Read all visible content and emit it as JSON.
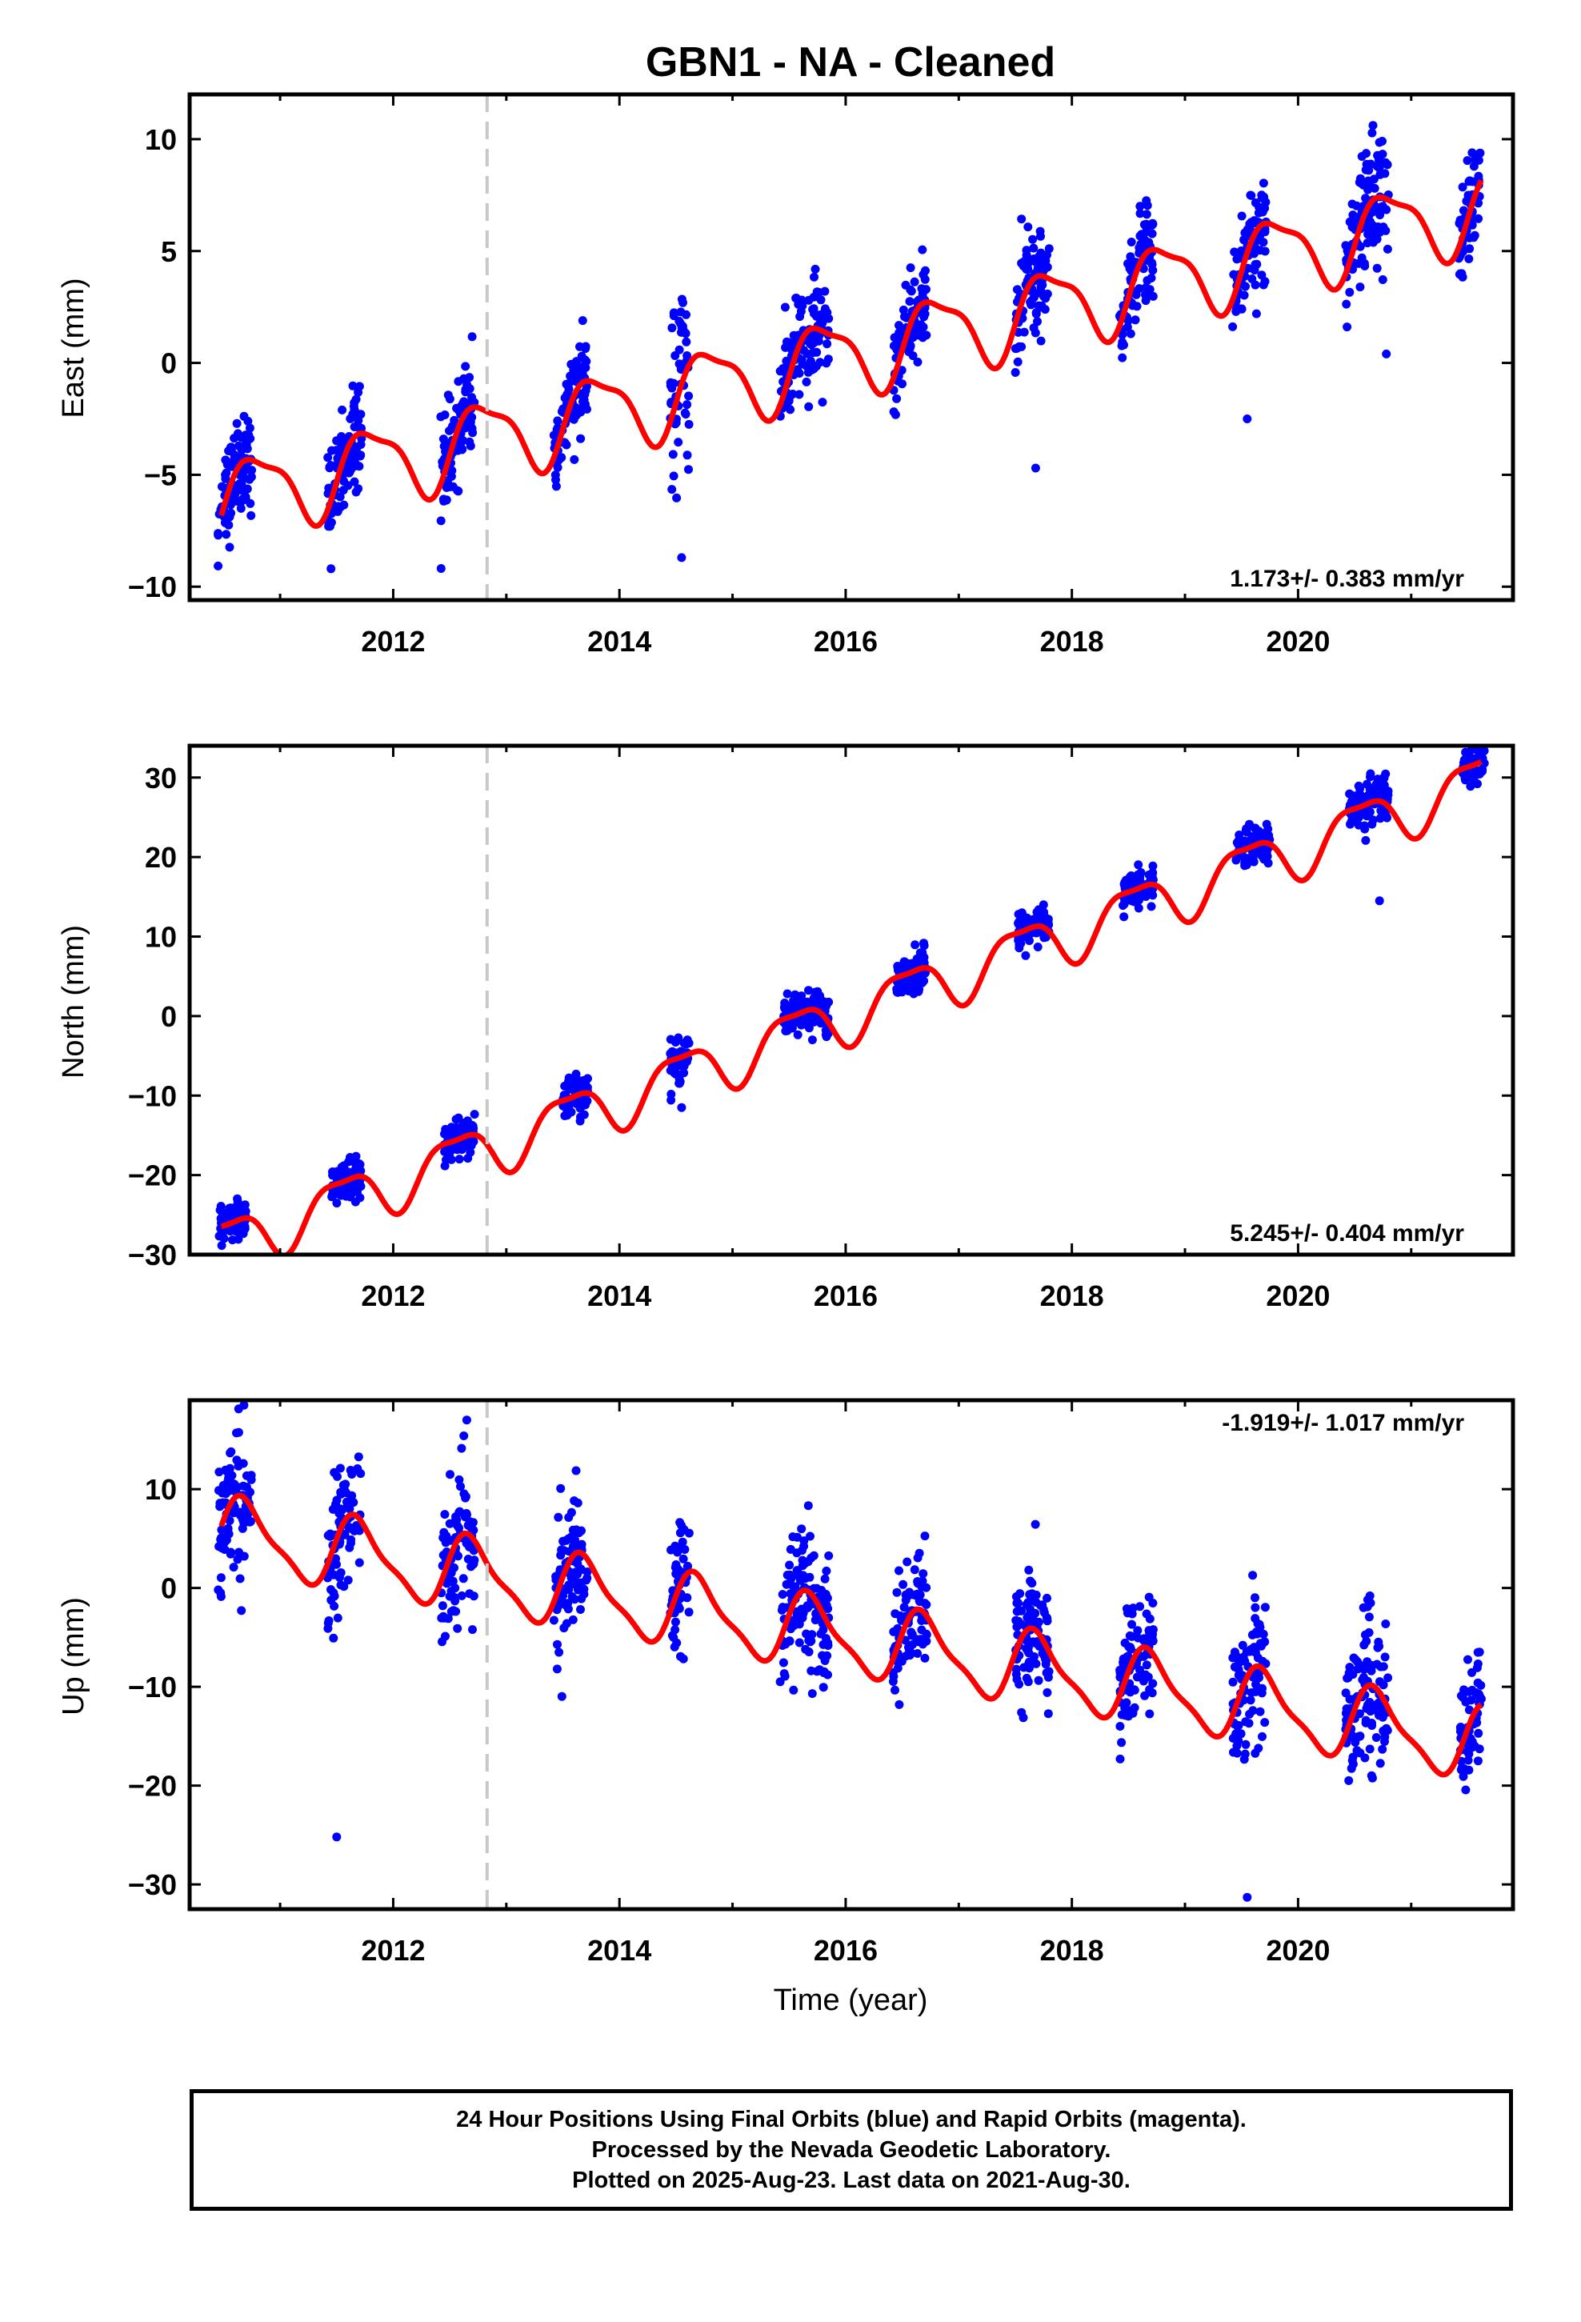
{
  "title": "GBN1  - NA - Cleaned",
  "x_axis_label": "Time (year)",
  "footer_lines": [
    "24 Hour Positions Using Final Orbits (blue) and Rapid Orbits (magenta).",
    "Processed by the Nevada Geodetic Laboratory.",
    "Plotted on 2025-Aug-23. Last data on 2021-Aug-30."
  ],
  "colors": {
    "data": "#0000ff",
    "model": "#ff0000",
    "marker_line": "#c8c8c8",
    "frame": "#000000"
  },
  "chart_data": [
    {
      "type": "scatter",
      "ylabel": "East (mm)",
      "xlim": [
        2010.2,
        2021.9
      ],
      "ylim": [
        -10.6,
        12
      ],
      "x_ticks": [
        2012,
        2014,
        2016,
        2018,
        2020
      ],
      "y_ticks": [
        -10,
        -5,
        0,
        5,
        10
      ],
      "rate_label": "1.173+/- 0.383 mm/yr",
      "rate_position": "bottom-right",
      "vertical_marker": 2012.83,
      "trend": {
        "y_at_2010_5": -6.1,
        "slope": 1.173,
        "annual_amplitude": 1.7,
        "annual_phase_peak": 2010.8,
        "semiannual_amplitude": 0.5,
        "semiannual_phase_peak": 2010.6
      },
      "clusters": [
        {
          "start": 2010.45,
          "end": 2010.75,
          "spread": 1.1
        },
        {
          "start": 2011.42,
          "end": 2011.72,
          "spread": 1.1
        },
        {
          "start": 2012.42,
          "end": 2012.72,
          "spread": 1.1
        },
        {
          "start": 2013.42,
          "end": 2013.72,
          "spread": 1.0
        },
        {
          "start": 2014.45,
          "end": 2014.62,
          "spread": 1.8
        },
        {
          "start": 2015.42,
          "end": 2015.85,
          "spread": 1.2
        },
        {
          "start": 2016.42,
          "end": 2016.72,
          "spread": 1.0
        },
        {
          "start": 2017.5,
          "end": 2017.8,
          "spread": 1.2
        },
        {
          "start": 2018.42,
          "end": 2018.72,
          "spread": 1.0
        },
        {
          "start": 2019.42,
          "end": 2019.72,
          "spread": 1.3
        },
        {
          "start": 2020.42,
          "end": 2020.8,
          "spread": 1.4
        },
        {
          "start": 2021.42,
          "end": 2021.62,
          "spread": 1.2
        }
      ],
      "outliers": [
        [
          2017.68,
          -4.7
        ],
        [
          2019.55,
          -2.5
        ],
        [
          2020.78,
          0.4
        ],
        [
          2014.55,
          -8.7
        ],
        [
          2011.45,
          -9.2
        ]
      ]
    },
    {
      "type": "scatter",
      "ylabel": "North (mm)",
      "xlim": [
        2010.2,
        2021.9
      ],
      "ylim": [
        -30,
        34
      ],
      "x_ticks": [
        2012,
        2014,
        2016,
        2018,
        2020
      ],
      "y_ticks": [
        -30,
        -20,
        -10,
        0,
        10,
        20,
        30
      ],
      "rate_label": "5.245+/- 0.404 mm/yr",
      "rate_position": "bottom-right",
      "vertical_marker": 2012.83,
      "trend": {
        "y_at_2010_5": -28.7,
        "slope": 5.245,
        "annual_amplitude": 3.3,
        "annual_phase_peak": 2010.55,
        "semiannual_amplitude": 1.0,
        "semiannual_phase_peak": 2010.3
      },
      "clusters": [
        {
          "start": 2010.45,
          "end": 2010.7,
          "spread": 1.2
        },
        {
          "start": 2011.45,
          "end": 2011.72,
          "spread": 1.2
        },
        {
          "start": 2012.45,
          "end": 2012.72,
          "spread": 1.2
        },
        {
          "start": 2013.5,
          "end": 2013.72,
          "spread": 1.3
        },
        {
          "start": 2014.45,
          "end": 2014.62,
          "spread": 1.5
        },
        {
          "start": 2015.45,
          "end": 2015.85,
          "spread": 1.3
        },
        {
          "start": 2016.45,
          "end": 2016.72,
          "spread": 1.2
        },
        {
          "start": 2017.52,
          "end": 2017.8,
          "spread": 1.3
        },
        {
          "start": 2018.45,
          "end": 2018.72,
          "spread": 1.2
        },
        {
          "start": 2019.45,
          "end": 2019.75,
          "spread": 1.4
        },
        {
          "start": 2020.45,
          "end": 2020.8,
          "spread": 1.5
        },
        {
          "start": 2021.45,
          "end": 2021.65,
          "spread": 1.2
        }
      ],
      "outliers": [
        [
          2014.55,
          -11.5
        ],
        [
          2020.72,
          14.5
        ]
      ]
    },
    {
      "type": "scatter",
      "ylabel": "Up (mm)",
      "xlim": [
        2010.2,
        2021.9
      ],
      "ylim": [
        -32.5,
        19
      ],
      "x_ticks": [
        2012,
        2014,
        2016,
        2018,
        2020
      ],
      "y_ticks": [
        -30,
        -20,
        -10,
        0,
        10
      ],
      "rate_label": "-1.919+/- 1.017 mm/yr",
      "rate_position": "top-right",
      "vertical_marker": 2012.83,
      "trend": {
        "y_at_2010_5": 5.5,
        "slope": -1.919,
        "annual_amplitude": 3.5,
        "annual_phase_peak": 2010.7,
        "semiannual_amplitude": 1.0,
        "semiannual_phase_peak": 2010.6,
        "offset_at_marker": 0
      },
      "clusters": [
        {
          "start": 2010.45,
          "end": 2010.75,
          "spread": 3.5
        },
        {
          "start": 2011.42,
          "end": 2011.72,
          "spread": 3.5
        },
        {
          "start": 2012.42,
          "end": 2012.72,
          "spread": 3.5
        },
        {
          "start": 2013.42,
          "end": 2013.72,
          "spread": 3.5
        },
        {
          "start": 2014.45,
          "end": 2014.62,
          "spread": 3.5
        },
        {
          "start": 2015.42,
          "end": 2015.85,
          "spread": 3.3
        },
        {
          "start": 2016.42,
          "end": 2016.72,
          "spread": 3.0
        },
        {
          "start": 2017.5,
          "end": 2017.8,
          "spread": 3.0
        },
        {
          "start": 2018.42,
          "end": 2018.72,
          "spread": 3.0
        },
        {
          "start": 2019.42,
          "end": 2019.72,
          "spread": 3.8
        },
        {
          "start": 2020.42,
          "end": 2020.8,
          "spread": 3.8
        },
        {
          "start": 2021.42,
          "end": 2021.62,
          "spread": 3.0
        }
      ],
      "outliers": [
        [
          2011.5,
          -25.2
        ],
        [
          2019.55,
          -31.3
        ],
        [
          2010.68,
          18.5
        ],
        [
          2012.65,
          17.0
        ],
        [
          2013.45,
          -8.2
        ]
      ]
    }
  ]
}
